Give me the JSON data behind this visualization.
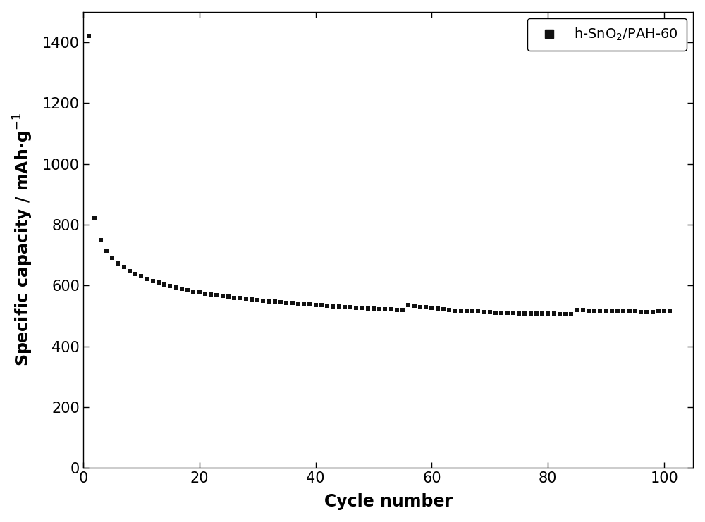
{
  "cycle_numbers": [
    1,
    2,
    3,
    4,
    5,
    6,
    7,
    8,
    9,
    10,
    11,
    12,
    13,
    14,
    15,
    16,
    17,
    18,
    19,
    20,
    21,
    22,
    23,
    24,
    25,
    26,
    27,
    28,
    29,
    30,
    31,
    32,
    33,
    34,
    35,
    36,
    37,
    38,
    39,
    40,
    41,
    42,
    43,
    44,
    45,
    46,
    47,
    48,
    49,
    50,
    51,
    52,
    53,
    54,
    55,
    56,
    57,
    58,
    59,
    60,
    61,
    62,
    63,
    64,
    65,
    66,
    67,
    68,
    69,
    70,
    71,
    72,
    73,
    74,
    75,
    76,
    77,
    78,
    79,
    80,
    81,
    82,
    83,
    84,
    85,
    86,
    87,
    88,
    89,
    90,
    91,
    92,
    93,
    94,
    95,
    96,
    97,
    98,
    99,
    100,
    101
  ],
  "capacity_values": [
    1420,
    820,
    748,
    715,
    690,
    672,
    660,
    648,
    638,
    630,
    622,
    615,
    609,
    603,
    598,
    593,
    588,
    584,
    580,
    577,
    574,
    571,
    568,
    565,
    563,
    560,
    558,
    556,
    554,
    552,
    550,
    548,
    547,
    545,
    543,
    542,
    540,
    539,
    537,
    536,
    535,
    533,
    532,
    531,
    530,
    529,
    527,
    526,
    525,
    524,
    523,
    522,
    521,
    520,
    519,
    535,
    533,
    530,
    528,
    526,
    524,
    522,
    520,
    518,
    517,
    516,
    515,
    514,
    513,
    512,
    511,
    511,
    510,
    510,
    509,
    509,
    508,
    508,
    507,
    507,
    507,
    506,
    506,
    506,
    520,
    519,
    518,
    517,
    516,
    516,
    515,
    515,
    514,
    514,
    514,
    513,
    513,
    513,
    514,
    514,
    515
  ],
  "marker": "s",
  "marker_size": 5,
  "marker_color": "#111111",
  "legend_label": "h-SnO$_2$/PAH-60",
  "xlabel": "Cycle number",
  "ylabel": "Specific capacity / mAh·g$^{-1}$",
  "xlim": [
    0,
    105
  ],
  "ylim": [
    0,
    1500
  ],
  "xticks": [
    0,
    20,
    40,
    60,
    80,
    100
  ],
  "yticks": [
    0,
    200,
    400,
    600,
    800,
    1000,
    1200,
    1400
  ],
  "background_color": "#ffffff",
  "plot_bg_color": "#ffffff",
  "tick_fontsize": 15,
  "label_fontsize": 17,
  "legend_fontsize": 14,
  "legend_loc": "upper right",
  "fig_width": 10.0,
  "fig_height": 7.41,
  "dpi": 100
}
